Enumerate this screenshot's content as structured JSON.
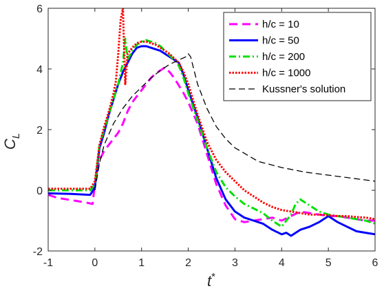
{
  "chart_data": {
    "type": "line",
    "title": "",
    "xlabel": "t",
    "xlabel_superscript": "*",
    "ylabel": "C",
    "ylabel_subscript": "L",
    "xlim": [
      -1,
      6
    ],
    "ylim": [
      -2,
      6
    ],
    "xticks": [
      -1,
      0,
      1,
      2,
      3,
      4,
      5,
      6
    ],
    "yticks": [
      -2,
      0,
      2,
      4,
      6
    ],
    "grid": false,
    "legend_position": "top-right",
    "series": [
      {
        "name": "h/c = 10",
        "color": "#ff00ff",
        "dash": "dashed",
        "x": [
          -1,
          -0.8,
          -0.6,
          -0.4,
          -0.2,
          -0.05,
          0,
          0.1,
          0.2,
          0.35,
          0.5,
          0.6,
          0.7,
          0.8,
          0.9,
          1.0,
          1.1,
          1.2,
          1.3,
          1.4,
          1.5,
          1.6,
          1.7,
          1.8,
          1.9,
          2.0,
          2.2,
          2.4,
          2.6,
          2.8,
          3.0,
          3.2,
          3.4,
          3.6,
          3.8,
          4.0,
          4.2,
          4.4,
          4.6,
          4.8,
          5.0,
          5.2,
          5.4,
          5.6,
          5.8,
          6.0
        ],
        "y": [
          -0.15,
          -0.25,
          -0.3,
          -0.35,
          -0.4,
          -0.45,
          0.2,
          1.0,
          1.3,
          1.6,
          1.9,
          2.2,
          2.6,
          2.9,
          3.1,
          3.3,
          3.5,
          3.7,
          3.85,
          3.95,
          4.05,
          3.9,
          3.7,
          3.45,
          3.2,
          2.9,
          2.2,
          1.2,
          0.2,
          -0.5,
          -0.95,
          -1.05,
          -1.0,
          -0.95,
          -0.9,
          -1.0,
          -0.85,
          -0.7,
          -0.75,
          -0.8,
          -0.85,
          -0.85,
          -0.9,
          -0.95,
          -1.0,
          -1.0
        ]
      },
      {
        "name": "h/c = 50",
        "color": "#0000ff",
        "dash": "solid",
        "x": [
          -1,
          -0.5,
          -0.1,
          0,
          0.1,
          0.2,
          0.3,
          0.4,
          0.5,
          0.6,
          0.7,
          0.8,
          0.9,
          1.0,
          1.1,
          1.2,
          1.3,
          1.4,
          1.5,
          1.6,
          1.7,
          1.8,
          1.9,
          2.0,
          2.2,
          2.4,
          2.6,
          2.8,
          3.0,
          3.2,
          3.4,
          3.6,
          3.8,
          4.0,
          4.1,
          4.2,
          4.4,
          4.6,
          4.8,
          5.0,
          5.2,
          5.4,
          5.6,
          5.8,
          6.0
        ],
        "y": [
          -0.1,
          -0.12,
          -0.15,
          0.1,
          1.4,
          1.9,
          2.5,
          3.0,
          3.5,
          3.9,
          4.2,
          4.5,
          4.7,
          4.75,
          4.75,
          4.7,
          4.65,
          4.6,
          4.5,
          4.4,
          4.3,
          4.2,
          3.8,
          3.3,
          2.4,
          1.4,
          0.4,
          -0.3,
          -0.7,
          -0.9,
          -1.0,
          -1.1,
          -1.3,
          -1.45,
          -1.4,
          -1.5,
          -1.3,
          -1.2,
          -1.05,
          -0.85,
          -1.05,
          -1.2,
          -1.35,
          -1.4,
          -1.45
        ]
      },
      {
        "name": "h/c = 200",
        "color": "#00e000",
        "dash": "dashdot",
        "x": [
          -1,
          -0.5,
          -0.1,
          0,
          0.1,
          0.2,
          0.3,
          0.4,
          0.5,
          0.6,
          0.65,
          0.7,
          0.8,
          0.9,
          1.0,
          1.1,
          1.2,
          1.3,
          1.4,
          1.5,
          1.6,
          1.7,
          1.8,
          1.9,
          2.0,
          2.2,
          2.4,
          2.6,
          2.8,
          3.0,
          3.2,
          3.4,
          3.6,
          3.8,
          4.0,
          4.2,
          4.3,
          4.4,
          4.6,
          4.8,
          5.0,
          5.2,
          5.4,
          5.6,
          5.8,
          6.0
        ],
        "y": [
          0.0,
          0.0,
          0.0,
          0.2,
          1.5,
          2.0,
          2.5,
          3.0,
          3.5,
          4.2,
          5.0,
          4.3,
          4.6,
          4.8,
          4.9,
          4.95,
          4.9,
          4.85,
          4.75,
          4.6,
          4.45,
          4.3,
          4.1,
          3.7,
          3.2,
          2.3,
          1.4,
          0.6,
          0.1,
          -0.2,
          -0.45,
          -0.6,
          -0.75,
          -1.0,
          -1.2,
          -0.8,
          -0.45,
          -0.3,
          -0.5,
          -0.7,
          -0.8,
          -0.85,
          -0.9,
          -0.95,
          -1.0,
          -1.1
        ]
      },
      {
        "name": "h/c = 1000",
        "color": "#ff0000",
        "dash": "dotted",
        "x": [
          -1,
          -0.5,
          -0.1,
          0,
          0.1,
          0.2,
          0.3,
          0.4,
          0.45,
          0.5,
          0.55,
          0.6,
          0.62,
          0.65,
          0.7,
          0.8,
          0.9,
          1.0,
          1.1,
          1.2,
          1.3,
          1.4,
          1.5,
          1.6,
          1.7,
          1.8,
          1.9,
          2.0,
          2.2,
          2.4,
          2.6,
          2.8,
          3.0,
          3.2,
          3.4,
          3.6,
          3.8,
          4.0,
          4.2,
          4.4,
          4.6,
          4.8,
          5.0,
          5.2,
          5.4,
          5.6,
          5.8,
          6.0
        ],
        "y": [
          0.05,
          0.05,
          0.05,
          0.3,
          1.5,
          2.1,
          2.6,
          3.2,
          3.6,
          4.5,
          5.6,
          6.0,
          5.0,
          3.5,
          4.5,
          4.7,
          4.85,
          4.9,
          4.9,
          4.85,
          4.8,
          4.7,
          4.6,
          4.5,
          4.35,
          4.2,
          3.9,
          3.5,
          2.5,
          1.6,
          1.0,
          0.6,
          0.3,
          0.0,
          -0.2,
          -0.4,
          -0.55,
          -0.65,
          -0.7,
          -0.75,
          -0.8,
          -0.8,
          -0.82,
          -0.85,
          -0.85,
          -0.88,
          -0.9,
          -0.95
        ]
      },
      {
        "name": "Kussner's solution",
        "color": "#000000",
        "dash": "longdash",
        "x": [
          0,
          0.1,
          0.2,
          0.4,
          0.6,
          0.8,
          1.0,
          1.2,
          1.4,
          1.6,
          1.8,
          1.95,
          2.0,
          2.05,
          2.2,
          2.4,
          2.6,
          2.8,
          3.0,
          3.5,
          4.0,
          4.5,
          5.0,
          5.5,
          6.0
        ],
        "y": [
          0,
          0.9,
          1.5,
          2.2,
          2.7,
          3.1,
          3.4,
          3.7,
          3.95,
          4.15,
          4.3,
          4.4,
          4.5,
          4.4,
          3.5,
          2.7,
          2.1,
          1.7,
          1.4,
          0.95,
          0.75,
          0.6,
          0.5,
          0.4,
          0.3
        ]
      }
    ]
  }
}
